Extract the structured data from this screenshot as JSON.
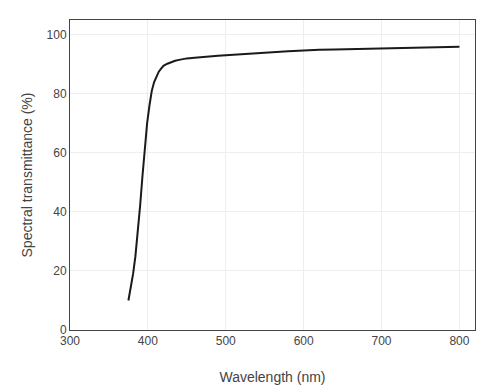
{
  "chart_data": {
    "type": "line",
    "xlabel": "Wavelength (nm)",
    "ylabel": "Spectral transmittance (%)",
    "x": [
      375,
      378,
      381,
      384,
      387,
      390,
      393,
      396,
      399,
      402,
      405,
      408,
      411,
      414,
      417,
      420,
      425,
      430,
      435,
      440,
      450,
      460,
      470,
      480,
      490,
      500,
      520,
      540,
      560,
      580,
      600,
      620,
      640,
      660,
      680,
      700,
      720,
      740,
      760,
      780,
      800
    ],
    "values": [
      10,
      14,
      19,
      25,
      33,
      42,
      52,
      62,
      70,
      76,
      81,
      84,
      86,
      87.5,
      88.5,
      89.5,
      90.2,
      90.8,
      91.2,
      91.5,
      92.0,
      92.2,
      92.5,
      92.7,
      92.9,
      93.1,
      93.5,
      93.8,
      94.1,
      94.4,
      94.7,
      94.9,
      95.0,
      95.1,
      95.2,
      95.3,
      95.4,
      95.5,
      95.6,
      95.7,
      95.9
    ],
    "color": "#1a1a1a",
    "xlim": [
      300,
      820
    ],
    "ylim": [
      0,
      105
    ],
    "xticks": [
      300,
      400,
      500,
      600,
      700,
      800
    ],
    "yticks": [
      0,
      20,
      40,
      60,
      80,
      100
    ],
    "grid": true
  }
}
